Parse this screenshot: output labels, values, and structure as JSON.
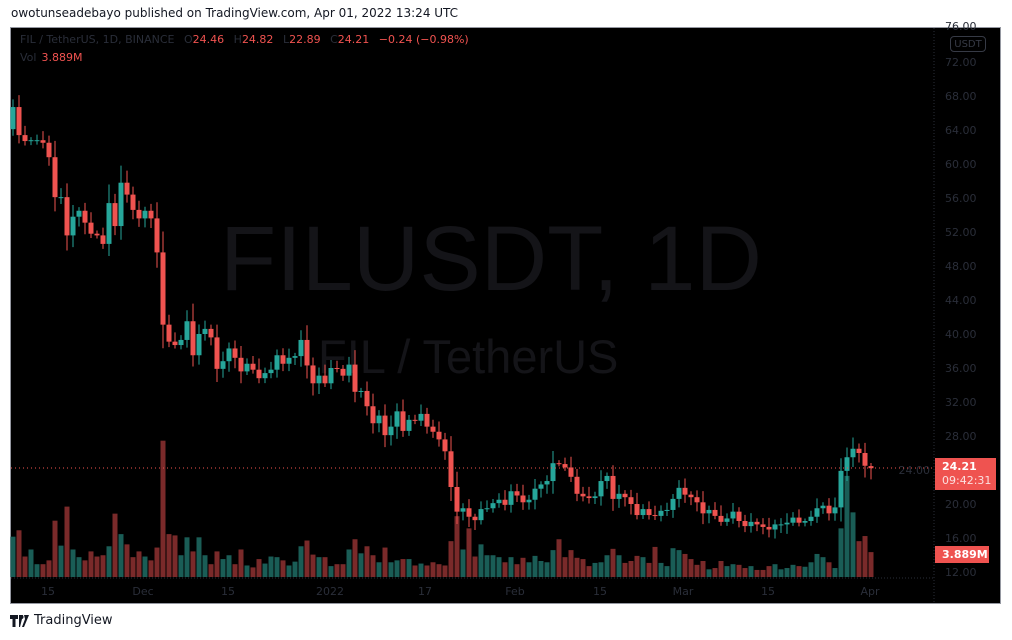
{
  "header": {
    "published": "owotunseadebayo published on TradingView.com, Apr 01, 2022 13:24 UTC"
  },
  "legend": {
    "symbol": "FIL / TetherUS, 1D, BINANCE",
    "o_label": "O",
    "open": "24.46",
    "h_label": "H",
    "high": "24.82",
    "l_label": "L",
    "low": "22.89",
    "c_label": "C",
    "close": "24.21",
    "change": "−0.24 (−0.98%)",
    "vol_label": "Vol",
    "vol": "3.889M"
  },
  "watermark": {
    "line1": "FILUSDT, 1D",
    "line2": "FIL / TetherUS"
  },
  "price_axis": {
    "currency": "USDT",
    "last_price": "24.21",
    "countdown": "09:42:31",
    "last_volume": "3.889M"
  },
  "footer": {
    "brand": "TradingView"
  },
  "colors": {
    "up": "#26a69a",
    "down": "#ef5350",
    "vol_up": "#1a5d56",
    "vol_down": "#7a2a2a",
    "background": "#000000"
  },
  "chart_data": {
    "type": "candlestick",
    "symbol": "FILUSDT",
    "interval": "1D",
    "y_ticks": [
      "76.00",
      "72.00",
      "68.00",
      "64.00",
      "60.00",
      "56.00",
      "52.00",
      "48.00",
      "44.00",
      "40.00",
      "36.00",
      "32.00",
      "28.00",
      "24.00",
      "20.00",
      "16.00",
      "12.00"
    ],
    "x_ticks": [
      "15",
      "Dec",
      "15",
      "2022",
      "17",
      "Feb",
      "15",
      "Mar",
      "15",
      "Apr"
    ],
    "ylim": [
      12,
      76
    ],
    "first_open": 64.1,
    "closes": [
      66.7,
      63.4,
      62.7,
      62.8,
      62.8,
      62.5,
      60.8,
      56.1,
      56.1,
      51.6,
      53.8,
      54.5,
      53.1,
      51.8,
      51.6,
      50.6,
      55.4,
      52.7,
      57.8,
      56.4,
      54.6,
      53.6,
      54.5,
      53.6,
      49.6,
      41.1,
      39.1,
      38.7,
      39.3,
      41.5,
      37.5,
      40.0,
      40.6,
      39.6,
      35.9,
      36.8,
      38.3,
      37.2,
      35.6,
      36.5,
      35.8,
      34.8,
      35.4,
      35.8,
      37.5,
      36.5,
      37.2,
      37.4,
      39.3,
      36.3,
      34.2,
      35.1,
      34.2,
      36.0,
      35.9,
      35.1,
      36.4,
      33.2,
      33.3,
      31.5,
      29.5,
      30.4,
      28.1,
      29.1,
      30.9,
      28.6,
      29.9,
      29.8,
      30.6,
      29.1,
      28.5,
      27.6,
      26.2,
      22.0,
      19.1,
      19.5,
      18.5,
      18.1,
      19.4,
      19.5,
      20.1,
      20.5,
      19.9,
      21.5,
      21.0,
      20.2,
      20.5,
      21.8,
      22.3,
      22.7,
      24.8,
      24.7,
      24.3,
      23.2,
      21.2,
      20.9,
      20.7,
      20.9,
      22.7,
      23.3,
      20.6,
      21.2,
      20.8,
      20.0,
      18.7,
      19.4,
      18.7,
      18.6,
      19.2,
      19.3,
      20.6,
      21.9,
      21.1,
      20.8,
      20.2,
      18.9,
      19.3,
      18.6,
      17.9,
      18.3,
      19.1,
      18.0,
      17.4,
      17.9,
      17.6,
      17.3,
      17.0,
      17.6,
      17.6,
      17.8,
      18.4,
      17.8,
      18.0,
      18.5,
      19.5,
      19.8,
      18.9,
      19.6,
      23.9,
      25.5,
      26.5,
      26.0,
      24.5,
      24.21
    ],
    "last_candle": {
      "open": 24.46,
      "high": 24.82,
      "low": 22.89,
      "close": 24.21
    },
    "volumes_m": [
      6.3,
      7.3,
      3.2,
      4.3,
      2.0,
      2.0,
      2.6,
      8.8,
      4.9,
      11.0,
      4.3,
      3.1,
      2.6,
      4.0,
      3.2,
      3.4,
      4.8,
      9.9,
      6.7,
      5.1,
      3.1,
      4.0,
      3.2,
      2.6,
      4.6,
      21.3,
      6.7,
      6.5,
      3.4,
      6.2,
      4.0,
      6.2,
      3.4,
      2.0,
      4.0,
      2.8,
      3.4,
      2.0,
      4.3,
      1.8,
      1.5,
      2.8,
      2.1,
      3.2,
      3.1,
      2.6,
      1.8,
      2.4,
      4.8,
      5.7,
      3.5,
      3.1,
      3.1,
      1.7,
      2.0,
      2.0,
      4.3,
      5.9,
      3.7,
      4.8,
      3.4,
      2.3,
      4.6,
      2.3,
      2.6,
      2.8,
      2.8,
      1.8,
      2.1,
      1.8,
      2.3,
      2.0,
      1.8,
      5.6,
      9.5,
      4.3,
      7.6,
      3.2,
      5.1,
      3.4,
      3.4,
      3.1,
      2.3,
      3.1,
      2.0,
      3.0,
      2.3,
      3.3,
      2.5,
      2.3,
      4.2,
      5.9,
      3.1,
      4.2,
      3.0,
      2.8,
      1.7,
      2.2,
      2.3,
      3.4,
      4.4,
      3.4,
      2.2,
      2.5,
      3.3,
      3.1,
      2.2,
      4.7,
      2.2,
      1.7,
      4.5,
      4.2,
      3.6,
      2.8,
      1.9,
      2.5,
      1.2,
      1.4,
      2.5,
      1.7,
      2.0,
      1.9,
      1.4,
      1.7,
      1.1,
      1.1,
      1.7,
      2.0,
      1.2,
      1.4,
      1.9,
      1.7,
      1.6,
      2.3,
      3.6,
      3.1,
      2.3,
      1.4,
      7.6,
      15.8,
      10.1,
      5.6,
      6.4,
      3.889
    ]
  }
}
